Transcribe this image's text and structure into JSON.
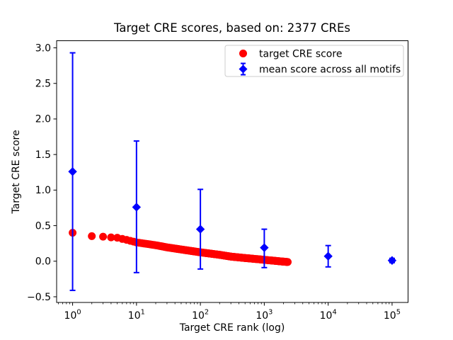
{
  "chart_data": {
    "type": "scatter",
    "title": "Target CRE scores, based on: 2377 CREs",
    "xlabel": "Target CRE rank (log)",
    "ylabel": "Target CRE score",
    "x_scale": "log",
    "x_log10_range": [
      -0.25,
      5.25
    ],
    "ylim": [
      -0.58,
      3.1
    ],
    "x_tick_exponents": [
      0,
      1,
      2,
      3,
      4,
      5
    ],
    "x_tick_base": "10",
    "y_tick_labels": [
      "3.0",
      "2.5",
      "2.0",
      "1.5",
      "1.0",
      "0.5",
      "0.0",
      "−0.5"
    ],
    "y_tick_values": [
      3.0,
      2.5,
      2.0,
      1.5,
      1.0,
      0.5,
      0.0,
      -0.5
    ],
    "grid": false,
    "legend": {
      "position": "upper right",
      "entries": [
        {
          "label": "target CRE score",
          "marker": "circle",
          "color": "#ff0000"
        },
        {
          "label": "mean score across all motifs",
          "marker": "diamond-errorbar",
          "color": "#0000ff"
        }
      ]
    },
    "series": [
      {
        "name": "target CRE score",
        "type": "scatter",
        "marker": "circle",
        "color": "#ff0000",
        "n_points": 2377,
        "x_description": "integer ranks 1..2377, log x-axis",
        "score_anchors_rank_value": [
          [
            1,
            0.4
          ],
          [
            2,
            0.352
          ],
          [
            3,
            0.345
          ],
          [
            4,
            0.335
          ],
          [
            5,
            0.33
          ],
          [
            7,
            0.3
          ],
          [
            10,
            0.265
          ],
          [
            20,
            0.225
          ],
          [
            30,
            0.195
          ],
          [
            50,
            0.165
          ],
          [
            100,
            0.125
          ],
          [
            200,
            0.09
          ],
          [
            300,
            0.065
          ],
          [
            500,
            0.045
          ],
          [
            1000,
            0.02
          ],
          [
            1600,
            0.002
          ],
          [
            2377,
            -0.012
          ]
        ]
      },
      {
        "name": "mean score across all motifs",
        "type": "errorbar",
        "marker": "diamond",
        "color": "#0000ff",
        "points": [
          {
            "x": 1,
            "mean": 1.26,
            "lo": -0.41,
            "hi": 2.93
          },
          {
            "x": 10,
            "mean": 0.76,
            "lo": -0.16,
            "hi": 1.69
          },
          {
            "x": 100,
            "mean": 0.45,
            "lo": -0.11,
            "hi": 1.01
          },
          {
            "x": 1000,
            "mean": 0.19,
            "lo": -0.09,
            "hi": 0.45
          },
          {
            "x": 10000,
            "mean": 0.07,
            "lo": -0.08,
            "hi": 0.22
          },
          {
            "x": 100000,
            "mean": 0.01,
            "lo": -0.02,
            "hi": 0.04
          }
        ]
      }
    ]
  }
}
